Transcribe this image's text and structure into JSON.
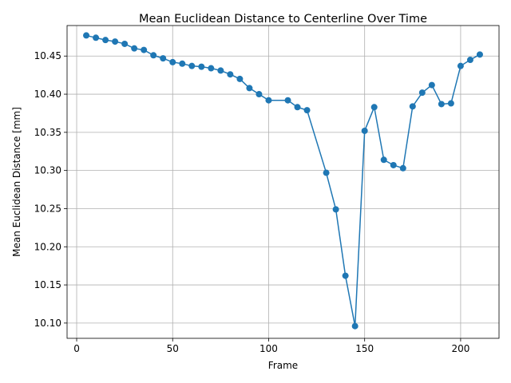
{
  "chart_data": {
    "type": "line",
    "title": "Mean Euclidean Distance to Centerline Over Time",
    "xlabel": "Frame",
    "ylabel": "Mean Euclidean Distance [mm]",
    "xlim": [
      -5,
      220
    ],
    "ylim": [
      10.08,
      10.49
    ],
    "xticks": [
      0,
      50,
      100,
      150,
      200
    ],
    "yticks": [
      10.1,
      10.15,
      10.2,
      10.25,
      10.3,
      10.35,
      10.4,
      10.45
    ],
    "xtick_labels": [
      "0",
      "50",
      "100",
      "150",
      "200"
    ],
    "ytick_labels": [
      "10.10",
      "10.15",
      "10.20",
      "10.25",
      "10.30",
      "10.35",
      "10.40",
      "10.45"
    ],
    "grid": true,
    "color": "#1f77b4",
    "marker": "circle",
    "x": [
      5,
      10,
      15,
      20,
      25,
      30,
      35,
      40,
      45,
      50,
      55,
      60,
      65,
      70,
      75,
      80,
      85,
      90,
      95,
      100,
      110,
      115,
      120,
      130,
      135,
      140,
      145,
      150,
      155,
      160,
      165,
      170,
      175,
      180,
      185,
      190,
      195,
      200,
      205,
      210
    ],
    "y": [
      10.477,
      10.474,
      10.471,
      10.469,
      10.466,
      10.46,
      10.458,
      10.451,
      10.447,
      10.442,
      10.44,
      10.437,
      10.436,
      10.434,
      10.431,
      10.426,
      10.42,
      10.408,
      10.4,
      10.392,
      10.392,
      10.383,
      10.379,
      10.297,
      10.249,
      10.162,
      10.096,
      10.352,
      10.383,
      10.314,
      10.307,
      10.303,
      10.384,
      10.402,
      10.412,
      10.387,
      10.388,
      10.437,
      10.445,
      10.452
    ]
  }
}
